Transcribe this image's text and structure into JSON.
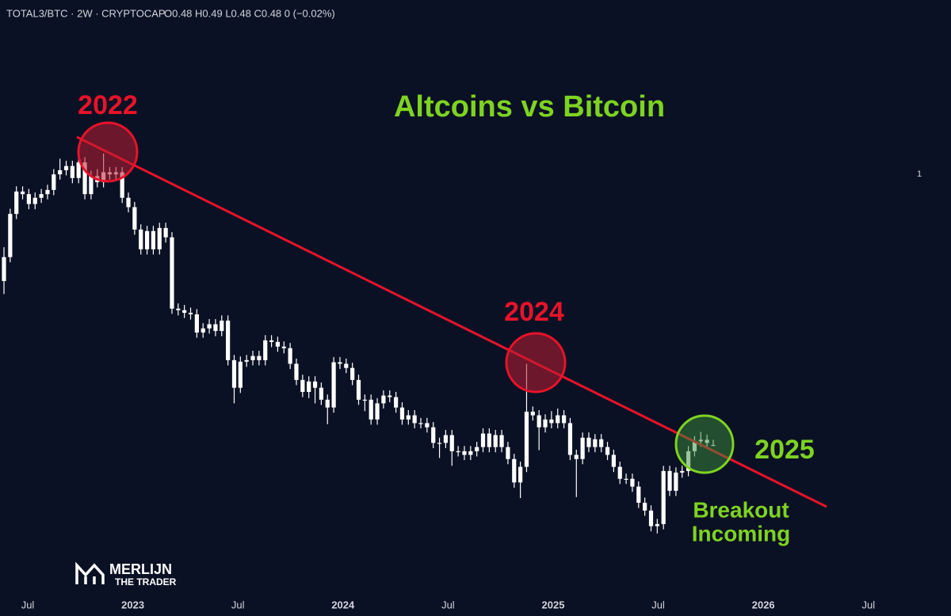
{
  "chart_data": {
    "type": "candlestick",
    "header": "TOTAL3/BTC · 2W · CRYPTOCAP",
    "ohlc_text": "O0.48  H0.49  L0.48  C0.48  0 (−0.02%)",
    "title": "Altcoins vs Bitcoin",
    "annotations": {
      "y2022": "2022",
      "y2024": "2024",
      "y2025": "2025",
      "breakout": [
        "Breakout",
        "Incoming"
      ]
    },
    "watermark": [
      "MERLIJN",
      "THE TRADER"
    ],
    "color": "#ffffff",
    "ylim": [
      0.194,
      1.335
    ],
    "yticks": [
      1
    ],
    "xticks": [
      {
        "value": "2022-07",
        "label": "Jul"
      },
      {
        "value": "2023-01",
        "label": "2023"
      },
      {
        "value": "2023-07",
        "label": "Jul"
      },
      {
        "value": "2024-01",
        "label": "2024"
      },
      {
        "value": "2024-07",
        "label": "Jul"
      },
      {
        "value": "2025-01",
        "label": "2025"
      },
      {
        "value": "2025-07",
        "label": "Jul"
      },
      {
        "value": "2026-01",
        "label": "2026"
      },
      {
        "value": "2026-07",
        "label": "Jul"
      }
    ],
    "candles": [
      [
        0.795,
        0.86,
        0.77,
        0.841
      ],
      [
        0.841,
        0.934,
        0.831,
        0.924
      ],
      [
        0.924,
        0.977,
        0.914,
        0.967
      ],
      [
        0.967,
        0.977,
        0.952,
        0.962
      ],
      [
        0.962,
        0.972,
        0.933,
        0.943
      ],
      [
        0.943,
        0.965,
        0.933,
        0.955
      ],
      [
        0.955,
        0.972,
        0.945,
        0.962
      ],
      [
        0.962,
        0.98,
        0.952,
        0.97
      ],
      [
        0.97,
        1.01,
        0.96,
        1.0
      ],
      [
        1.0,
        1.03,
        0.99,
        1.008
      ],
      [
        1.008,
        1.026,
        0.998,
        1.016
      ],
      [
        1.016,
        1.026,
        0.983,
        0.993
      ],
      [
        0.993,
        1.05,
        0.983,
        1.023
      ],
      [
        1.023,
        1.033,
        0.952,
        0.962
      ],
      [
        0.962,
        1.007,
        0.952,
        0.997
      ],
      [
        0.997,
        1.01,
        0.975,
        0.985
      ],
      [
        0.985,
        1.04,
        0.975,
        1.004
      ],
      [
        1.004,
        1.014,
        0.99,
        1.0
      ],
      [
        1.0,
        1.014,
        0.99,
        1.004
      ],
      [
        1.004,
        1.014,
        0.945,
        0.955
      ],
      [
        0.955,
        0.965,
        0.927,
        0.937
      ],
      [
        0.937,
        0.947,
        0.884,
        0.894
      ],
      [
        0.894,
        0.904,
        0.846,
        0.856
      ],
      [
        0.856,
        0.901,
        0.846,
        0.891
      ],
      [
        0.891,
        0.901,
        0.846,
        0.856
      ],
      [
        0.856,
        0.907,
        0.846,
        0.897
      ],
      [
        0.897,
        0.907,
        0.869,
        0.879
      ],
      [
        0.879,
        0.889,
        0.732,
        0.742
      ],
      [
        0.742,
        0.752,
        0.729,
        0.739
      ],
      [
        0.739,
        0.749,
        0.724,
        0.734
      ],
      [
        0.734,
        0.744,
        0.721,
        0.731
      ],
      [
        0.731,
        0.741,
        0.686,
        0.696
      ],
      [
        0.696,
        0.714,
        0.686,
        0.704
      ],
      [
        0.704,
        0.722,
        0.694,
        0.712
      ],
      [
        0.712,
        0.722,
        0.689,
        0.699
      ],
      [
        0.699,
        0.729,
        0.689,
        0.719
      ],
      [
        0.719,
        0.729,
        0.633,
        0.643
      ],
      [
        0.643,
        0.653,
        0.56,
        0.59
      ],
      [
        0.59,
        0.65,
        0.58,
        0.64
      ],
      [
        0.64,
        0.653,
        0.63,
        0.643
      ],
      [
        0.643,
        0.661,
        0.633,
        0.651
      ],
      [
        0.651,
        0.661,
        0.633,
        0.643
      ],
      [
        0.643,
        0.691,
        0.633,
        0.681
      ],
      [
        0.681,
        0.691,
        0.668,
        0.678
      ],
      [
        0.678,
        0.688,
        0.659,
        0.669
      ],
      [
        0.669,
        0.679,
        0.656,
        0.666
      ],
      [
        0.666,
        0.676,
        0.626,
        0.636
      ],
      [
        0.636,
        0.646,
        0.595,
        0.605
      ],
      [
        0.605,
        0.615,
        0.572,
        0.582
      ],
      [
        0.582,
        0.612,
        0.57,
        0.602
      ],
      [
        0.602,
        0.612,
        0.56,
        0.59
      ],
      [
        0.59,
        0.6,
        0.557,
        0.567
      ],
      [
        0.567,
        0.577,
        0.52,
        0.552
      ],
      [
        0.552,
        0.649,
        0.542,
        0.639
      ],
      [
        0.639,
        0.649,
        0.626,
        0.636
      ],
      [
        0.636,
        0.646,
        0.618,
        0.628
      ],
      [
        0.628,
        0.638,
        0.595,
        0.605
      ],
      [
        0.605,
        0.615,
        0.557,
        0.567
      ],
      [
        0.567,
        0.577,
        0.545,
        0.567
      ],
      [
        0.567,
        0.577,
        0.519,
        0.529
      ],
      [
        0.529,
        0.57,
        0.519,
        0.56
      ],
      [
        0.56,
        0.585,
        0.55,
        0.575
      ],
      [
        0.575,
        0.585,
        0.562,
        0.572
      ],
      [
        0.572,
        0.582,
        0.542,
        0.552
      ],
      [
        0.552,
        0.562,
        0.519,
        0.529
      ],
      [
        0.529,
        0.547,
        0.519,
        0.537
      ],
      [
        0.537,
        0.547,
        0.512,
        0.522
      ],
      [
        0.522,
        0.532,
        0.512,
        0.522
      ],
      [
        0.522,
        0.532,
        0.504,
        0.514
      ],
      [
        0.514,
        0.524,
        0.474,
        0.484
      ],
      [
        0.484,
        0.494,
        0.455,
        0.484
      ],
      [
        0.484,
        0.509,
        0.474,
        0.499
      ],
      [
        0.499,
        0.509,
        0.44,
        0.468
      ],
      [
        0.468,
        0.478,
        0.458,
        0.468
      ],
      [
        0.468,
        0.478,
        0.451,
        0.461
      ],
      [
        0.461,
        0.478,
        0.451,
        0.468
      ],
      [
        0.468,
        0.486,
        0.458,
        0.476
      ],
      [
        0.476,
        0.512,
        0.466,
        0.502
      ],
      [
        0.502,
        0.512,
        0.466,
        0.476
      ],
      [
        0.476,
        0.509,
        0.466,
        0.499
      ],
      [
        0.499,
        0.509,
        0.466,
        0.476
      ],
      [
        0.476,
        0.486,
        0.443,
        0.453
      ],
      [
        0.453,
        0.463,
        0.398,
        0.408
      ],
      [
        0.408,
        0.448,
        0.378,
        0.438
      ],
      [
        0.438,
        0.636,
        0.428,
        0.544
      ],
      [
        0.544,
        0.554,
        0.527,
        0.537
      ],
      [
        0.537,
        0.547,
        0.47,
        0.514
      ],
      [
        0.514,
        0.539,
        0.504,
        0.529
      ],
      [
        0.529,
        0.545,
        0.512,
        0.522
      ],
      [
        0.522,
        0.55,
        0.512,
        0.537
      ],
      [
        0.537,
        0.547,
        0.512,
        0.522
      ],
      [
        0.522,
        0.532,
        0.451,
        0.461
      ],
      [
        0.461,
        0.471,
        0.38,
        0.453
      ],
      [
        0.453,
        0.504,
        0.443,
        0.494
      ],
      [
        0.494,
        0.504,
        0.466,
        0.476
      ],
      [
        0.476,
        0.501,
        0.466,
        0.491
      ],
      [
        0.491,
        0.501,
        0.466,
        0.476
      ],
      [
        0.476,
        0.486,
        0.451,
        0.461
      ],
      [
        0.461,
        0.471,
        0.428,
        0.438
      ],
      [
        0.438,
        0.448,
        0.405,
        0.415
      ],
      [
        0.415,
        0.425,
        0.405,
        0.415
      ],
      [
        0.415,
        0.425,
        0.39,
        0.4
      ],
      [
        0.4,
        0.41,
        0.359,
        0.369
      ],
      [
        0.369,
        0.379,
        0.344,
        0.354
      ],
      [
        0.354,
        0.364,
        0.314,
        0.324
      ],
      [
        0.324,
        0.338,
        0.31,
        0.328
      ],
      [
        0.328,
        0.44,
        0.318,
        0.43
      ],
      [
        0.43,
        0.44,
        0.382,
        0.392
      ],
      [
        0.392,
        0.437,
        0.382,
        0.427
      ],
      [
        0.427,
        0.44,
        0.417,
        0.43
      ],
      [
        0.43,
        0.478,
        0.42,
        0.468
      ],
      [
        0.468,
        0.497,
        0.458,
        0.487
      ],
      [
        0.487,
        0.505,
        0.477,
        0.49
      ],
      [
        0.49,
        0.5,
        0.474,
        0.484
      ],
      [
        0.48,
        0.49,
        0.48,
        0.48
      ]
    ]
  }
}
